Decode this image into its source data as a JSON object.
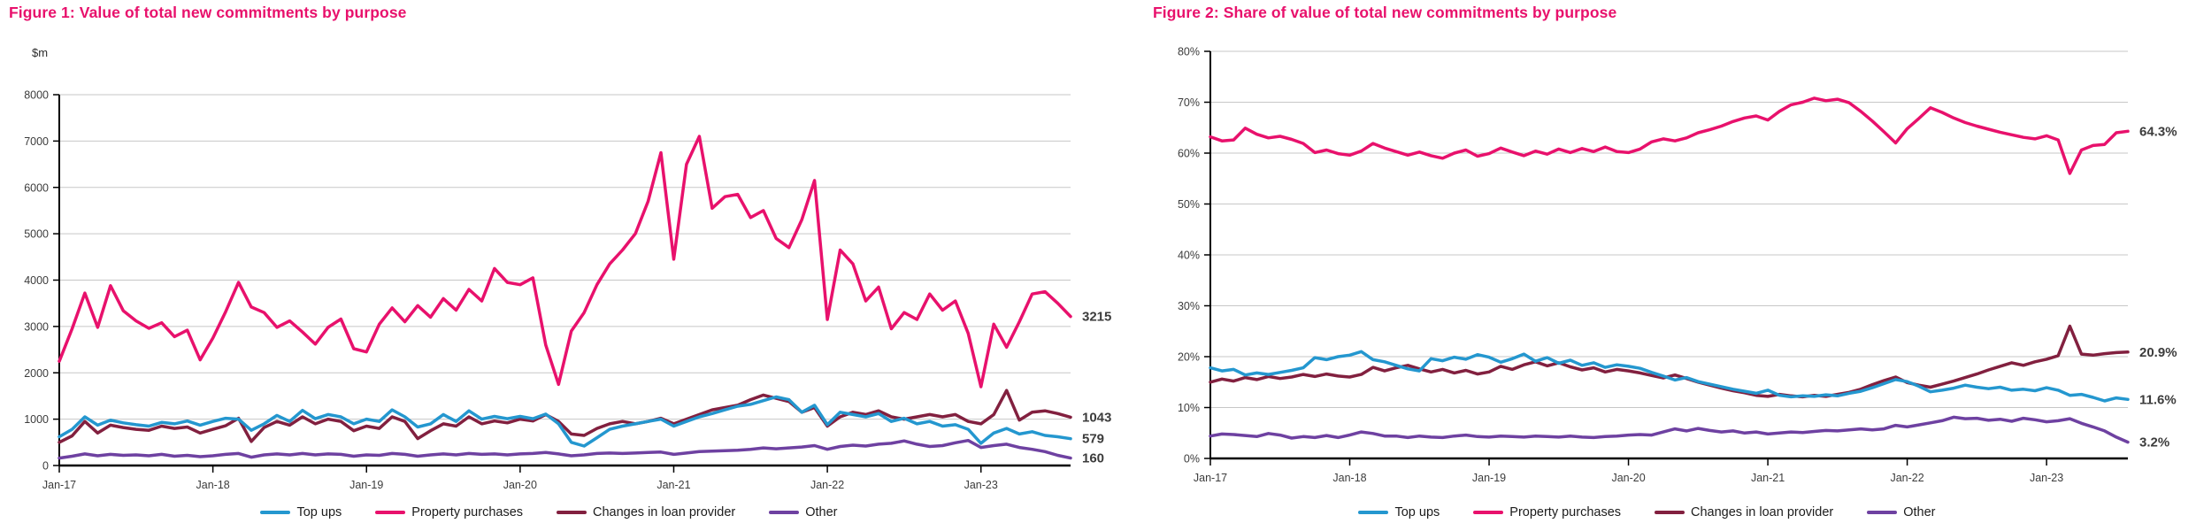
{
  "chart_data": [
    {
      "id": "figure1",
      "type": "line",
      "title": "Figure 1:  Value of total new commitments by purpose",
      "unit": "$m",
      "ylim": [
        0,
        8000
      ],
      "y_tick_values": [
        0,
        1000,
        2000,
        3000,
        4000,
        5000,
        6000,
        7000,
        8000
      ],
      "y_tick_labels": [
        "0",
        "1000",
        "2000",
        "3000",
        "4000",
        "5000",
        "6000",
        "7000",
        "8000"
      ],
      "x_tick_labels": [
        "Jan-17",
        "Jan-18",
        "Jan-19",
        "Jan-20",
        "Jan-21",
        "Jan-22",
        "Jan-23"
      ],
      "x_tick_month_indices": [
        0,
        12,
        24,
        36,
        48,
        60,
        72
      ],
      "x_start": "Jan-17",
      "x_end": "Aug-23",
      "grid": true,
      "legend_position": "bottom",
      "series": [
        {
          "name": "Top ups",
          "color": "#2497cf",
          "end_label": "579",
          "values": [
            620,
            780,
            1050,
            870,
            980,
            920,
            880,
            850,
            930,
            900,
            960,
            870,
            950,
            1020,
            1000,
            760,
            900,
            1080,
            950,
            1190,
            1010,
            1100,
            1050,
            900,
            1000,
            950,
            1200,
            1050,
            830,
            900,
            1100,
            950,
            1180,
            1000,
            1060,
            1010,
            1060,
            1010,
            1110,
            900,
            500,
            420,
            600,
            780,
            850,
            900,
            950,
            1000,
            850,
            950,
            1050,
            1120,
            1200,
            1280,
            1320,
            1400,
            1480,
            1420,
            1150,
            1300,
            880,
            1150,
            1100,
            1050,
            1120,
            950,
            1020,
            900,
            950,
            850,
            880,
            780,
            480,
            700,
            800,
            680,
            730,
            650,
            620,
            579
          ]
        },
        {
          "name": "Property purchases",
          "color": "#e8116c",
          "end_label": "3215",
          "values": [
            2250,
            2950,
            3720,
            2980,
            3880,
            3340,
            3120,
            2960,
            3080,
            2780,
            2920,
            2280,
            2750,
            3320,
            3950,
            3420,
            3300,
            2980,
            3120,
            2880,
            2620,
            2980,
            3160,
            2520,
            2450,
            3050,
            3400,
            3100,
            3450,
            3200,
            3600,
            3350,
            3800,
            3550,
            4250,
            3950,
            3900,
            4050,
            2600,
            1750,
            2900,
            3300,
            3900,
            4350,
            4650,
            5000,
            5700,
            6750,
            4450,
            6500,
            7100,
            5550,
            5800,
            5850,
            5350,
            5500,
            4900,
            4700,
            5300,
            6150,
            3150,
            4650,
            4350,
            3550,
            3850,
            2950,
            3300,
            3150,
            3700,
            3350,
            3550,
            2850,
            1700,
            3050,
            2550,
            3100,
            3700,
            3750,
            3500,
            3215
          ]
        },
        {
          "name": "Changes in loan provider",
          "color": "#82203f",
          "end_label": "1043",
          "values": [
            500,
            640,
            950,
            700,
            870,
            820,
            780,
            760,
            850,
            800,
            830,
            700,
            780,
            860,
            1020,
            520,
            820,
            950,
            870,
            1050,
            900,
            1000,
            950,
            750,
            850,
            800,
            1050,
            950,
            580,
            750,
            900,
            850,
            1050,
            900,
            960,
            920,
            1000,
            960,
            1100,
            950,
            680,
            650,
            800,
            900,
            950,
            900,
            950,
            1020,
            900,
            1000,
            1100,
            1200,
            1250,
            1300,
            1420,
            1520,
            1450,
            1380,
            1150,
            1250,
            850,
            1050,
            1150,
            1100,
            1180,
            1050,
            1000,
            1050,
            1100,
            1050,
            1100,
            950,
            900,
            1100,
            1620,
            980,
            1150,
            1180,
            1120,
            1043
          ]
        },
        {
          "name": "Other",
          "color": "#6e41a1",
          "end_label": "160",
          "values": [
            160,
            200,
            250,
            210,
            240,
            220,
            230,
            210,
            240,
            200,
            220,
            190,
            210,
            240,
            260,
            180,
            230,
            250,
            230,
            260,
            230,
            250,
            240,
            200,
            230,
            220,
            260,
            240,
            200,
            230,
            250,
            230,
            260,
            240,
            250,
            230,
            250,
            260,
            280,
            250,
            210,
            230,
            260,
            270,
            260,
            270,
            280,
            290,
            240,
            270,
            300,
            310,
            320,
            330,
            350,
            380,
            360,
            380,
            400,
            430,
            350,
            410,
            440,
            420,
            460,
            480,
            530,
            460,
            410,
            430,
            490,
            540,
            390,
            430,
            460,
            390,
            350,
            300,
            220,
            160
          ]
        }
      ]
    },
    {
      "id": "figure2",
      "type": "line",
      "title": "Figure 2:  Share of value of total new commitments by purpose",
      "unit": "",
      "ylim": [
        0,
        80
      ],
      "y_tick_values": [
        0,
        10,
        20,
        30,
        40,
        50,
        60,
        70,
        80
      ],
      "y_tick_labels": [
        "0%",
        "10%",
        "20%",
        "30%",
        "40%",
        "50%",
        "60%",
        "70%",
        "80%"
      ],
      "x_tick_labels": [
        "Jan-17",
        "Jan-18",
        "Jan-19",
        "Jan-20",
        "Jan-21",
        "Jan-22",
        "Jan-23"
      ],
      "x_tick_month_indices": [
        0,
        12,
        24,
        36,
        48,
        60,
        72
      ],
      "x_start": "Jan-17",
      "x_end": "Aug-23",
      "grid": true,
      "legend_position": "bottom",
      "series": [
        {
          "name": "Top ups",
          "color": "#2497cf",
          "end_label": "11.6%",
          "values": [
            17.8,
            17.2,
            17.5,
            16.4,
            16.8,
            16.5,
            16.9,
            17.3,
            17.8,
            19.8,
            19.4,
            20.0,
            20.3,
            21.0,
            19.4,
            19.0,
            18.3,
            17.6,
            17.2,
            19.6,
            19.2,
            19.9,
            19.5,
            20.4,
            19.9,
            18.9,
            19.6,
            20.5,
            19.1,
            19.8,
            18.7,
            19.3,
            18.3,
            18.8,
            17.9,
            18.4,
            18.1,
            17.7,
            16.9,
            16.2,
            15.4,
            15.9,
            15.1,
            14.6,
            14.1,
            13.6,
            13.2,
            12.8,
            13.4,
            12.4,
            12.1,
            12.3,
            12.2,
            12.5,
            12.3,
            12.8,
            13.2,
            13.9,
            14.7,
            15.5,
            15.1,
            14.2,
            13.1,
            13.4,
            13.8,
            14.4,
            14.0,
            13.7,
            14.0,
            13.4,
            13.6,
            13.3,
            13.9,
            13.4,
            12.4,
            12.6,
            12.0,
            11.3,
            11.9,
            11.6
          ]
        },
        {
          "name": "Property purchases",
          "color": "#e8116c",
          "end_label": "64.3%",
          "values": [
            63.2,
            62.4,
            62.6,
            64.9,
            63.7,
            63.0,
            63.3,
            62.7,
            61.9,
            60.1,
            60.6,
            59.9,
            59.6,
            60.4,
            61.9,
            61.0,
            60.3,
            59.6,
            60.2,
            59.5,
            59.0,
            60.0,
            60.6,
            59.4,
            59.9,
            61.0,
            60.2,
            59.5,
            60.4,
            59.8,
            60.8,
            60.1,
            60.9,
            60.3,
            61.2,
            60.3,
            60.1,
            60.8,
            62.2,
            62.8,
            62.4,
            63.0,
            64.0,
            64.6,
            65.3,
            66.2,
            66.9,
            67.3,
            66.5,
            68.2,
            69.5,
            70.0,
            70.8,
            70.3,
            70.6,
            69.9,
            68.2,
            66.3,
            64.2,
            62.0,
            64.8,
            66.8,
            68.9,
            68.0,
            66.9,
            66.0,
            65.3,
            64.7,
            64.1,
            63.6,
            63.1,
            62.8,
            63.4,
            62.6,
            56.0,
            60.6,
            61.5,
            61.7,
            64.0,
            64.3
          ]
        },
        {
          "name": "Changes in loan provider",
          "color": "#82203f",
          "end_label": "20.9%",
          "values": [
            15.0,
            15.6,
            15.2,
            15.9,
            15.5,
            16.1,
            15.7,
            16.0,
            16.5,
            16.1,
            16.6,
            16.2,
            16.0,
            16.5,
            17.9,
            17.2,
            17.8,
            18.3,
            17.6,
            17.0,
            17.5,
            16.8,
            17.3,
            16.6,
            17.0,
            18.1,
            17.5,
            18.4,
            19.0,
            18.2,
            18.8,
            18.0,
            17.4,
            17.8,
            17.0,
            17.5,
            17.2,
            16.8,
            16.3,
            15.8,
            16.4,
            15.7,
            15.0,
            14.4,
            13.8,
            13.3,
            12.9,
            12.4,
            12.2,
            12.6,
            12.3,
            12.1,
            12.4,
            12.2,
            12.6,
            13.0,
            13.6,
            14.5,
            15.3,
            16.0,
            14.9,
            14.4,
            14.0,
            14.6,
            15.2,
            15.9,
            16.6,
            17.4,
            18.1,
            18.8,
            18.3,
            19.0,
            19.5,
            20.2,
            26.0,
            20.5,
            20.3,
            20.6,
            20.8,
            20.9
          ]
        },
        {
          "name": "Other",
          "color": "#6e41a1",
          "end_label": "3.2%",
          "values": [
            4.4,
            4.8,
            4.7,
            4.5,
            4.3,
            4.9,
            4.6,
            4.0,
            4.3,
            4.1,
            4.5,
            4.1,
            4.6,
            5.2,
            4.9,
            4.4,
            4.4,
            4.1,
            4.4,
            4.2,
            4.1,
            4.4,
            4.6,
            4.3,
            4.2,
            4.4,
            4.3,
            4.2,
            4.4,
            4.3,
            4.2,
            4.4,
            4.2,
            4.1,
            4.3,
            4.4,
            4.6,
            4.7,
            4.6,
            5.2,
            5.8,
            5.4,
            5.9,
            5.5,
            5.2,
            5.4,
            5.0,
            5.2,
            4.8,
            5.0,
            5.2,
            5.1,
            5.3,
            5.5,
            5.4,
            5.6,
            5.8,
            5.6,
            5.8,
            6.5,
            6.2,
            6.6,
            7.0,
            7.4,
            8.1,
            7.8,
            7.9,
            7.5,
            7.7,
            7.3,
            7.9,
            7.6,
            7.2,
            7.4,
            7.8,
            6.9,
            6.2,
            5.4,
            4.2,
            3.2
          ]
        }
      ]
    }
  ],
  "style": {
    "grid_color": "#c7c7c7",
    "axis_color": "#000000",
    "tick_text_color": "#3c3c3c",
    "title_color": "#e8116c"
  }
}
